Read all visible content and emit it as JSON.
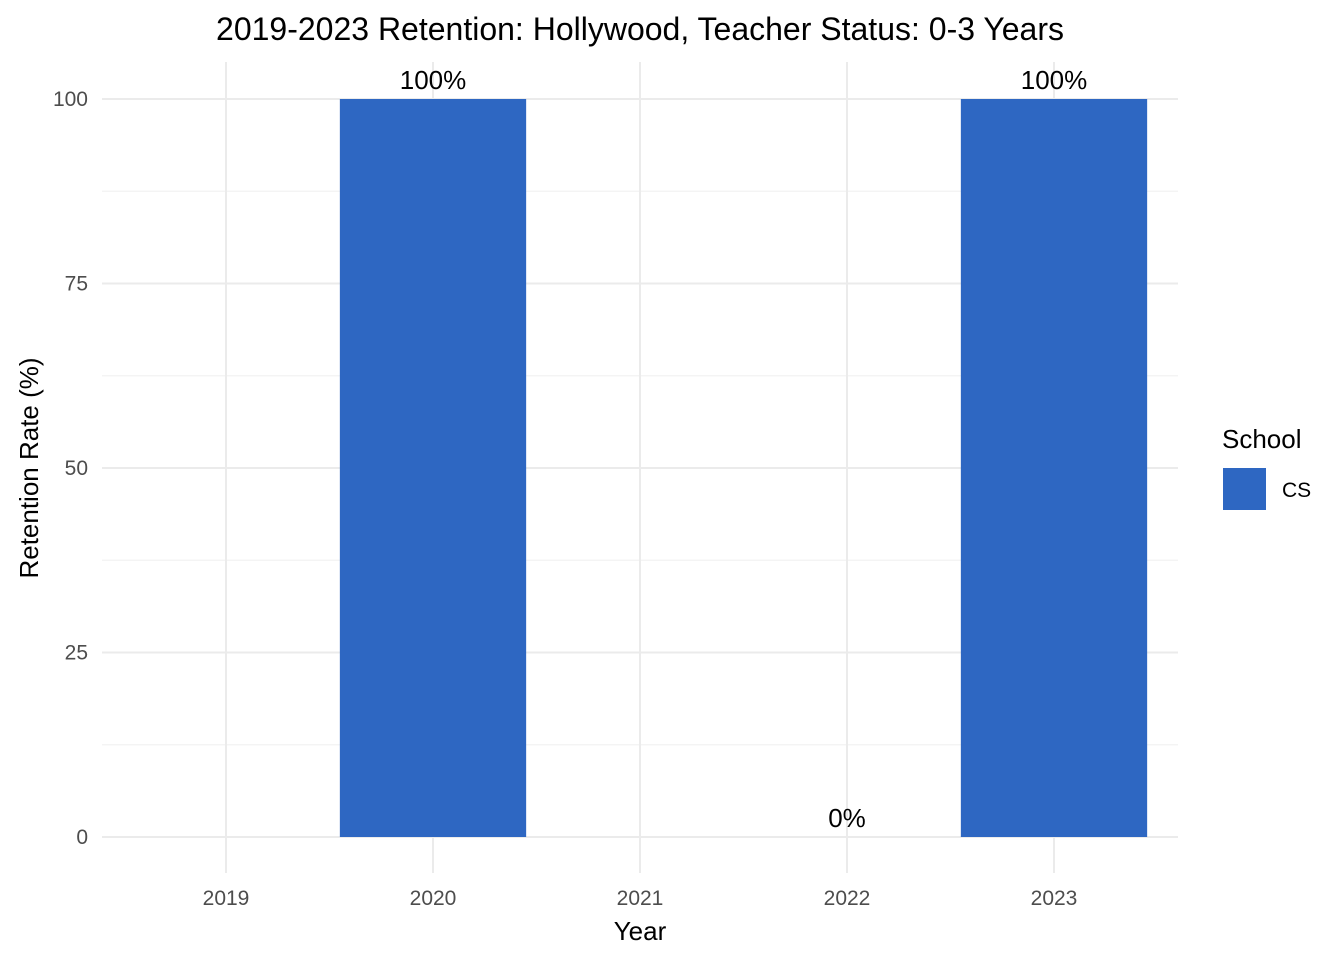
{
  "chart_data": {
    "type": "bar",
    "title": "2019-2023 Retention: Hollywood, Teacher Status: 0-3 Years",
    "xlabel": "Year",
    "ylabel": "Retention Rate (%)",
    "categories": [
      "2019",
      "2020",
      "2021",
      "2022",
      "2023"
    ],
    "series": [
      {
        "name": "CS",
        "color": "#2e67c2",
        "values": [
          null,
          100,
          null,
          0,
          100
        ],
        "data_labels": [
          "",
          "100%",
          "",
          "0%",
          "100%"
        ]
      }
    ],
    "ylim": [
      0,
      100
    ],
    "yticks": [
      0,
      25,
      50,
      75,
      100
    ],
    "ytick_labels": [
      "0",
      "25",
      "50",
      "75",
      "100"
    ],
    "grid": true,
    "legend": {
      "title": "School",
      "position": "right",
      "entries": [
        "CS"
      ]
    }
  }
}
